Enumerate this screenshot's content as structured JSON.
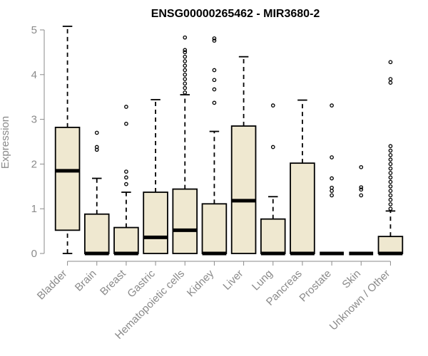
{
  "chart_data": {
    "type": "box",
    "title": "ENSG00000265462 - MIR3680-2",
    "ylabel": "Expression",
    "ylim": [
      0,
      5
    ],
    "y_ticks": [
      0,
      1,
      2,
      3,
      4,
      5
    ],
    "grid": false,
    "colors": {
      "box_fill": "#efe8d0",
      "box_stroke": "#000000",
      "median": "#000000",
      "axis": "#8a8a8a"
    },
    "categories": [
      "Bladder",
      "Brain",
      "Breast",
      "Gastric",
      "Hematopoietic cells",
      "Kidney",
      "Liver",
      "Lung",
      "Pancreas",
      "Prostate",
      "Skin",
      "Unknown / Other"
    ],
    "boxes": [
      {
        "q1": 0.52,
        "median": 1.85,
        "q3": 2.82,
        "whisker_low": 0.0,
        "whisker_high": 5.08,
        "outliers": []
      },
      {
        "q1": 0.0,
        "median": 0.0,
        "q3": 0.88,
        "whisker_low": 0.0,
        "whisker_high": 1.68,
        "outliers": [
          2.32,
          2.38,
          2.7
        ]
      },
      {
        "q1": 0.0,
        "median": 0.0,
        "q3": 0.58,
        "whisker_low": 0.0,
        "whisker_high": 1.37,
        "outliers": [
          1.55,
          1.7,
          1.83,
          2.9,
          3.28
        ]
      },
      {
        "q1": 0.0,
        "median": 0.36,
        "q3": 1.37,
        "whisker_low": 0.0,
        "whisker_high": 3.44,
        "outliers": []
      },
      {
        "q1": 0.0,
        "median": 0.52,
        "q3": 1.44,
        "whisker_low": 0.0,
        "whisker_high": 3.55,
        "outliers": [
          3.6,
          3.7,
          3.8,
          3.9,
          4.0,
          4.1,
          4.2,
          4.3,
          4.4,
          4.5,
          4.55,
          4.83
        ]
      },
      {
        "q1": 0.0,
        "median": 0.0,
        "q3": 1.11,
        "whisker_low": 0.0,
        "whisker_high": 2.73,
        "outliers": [
          3.37,
          3.67,
          3.88,
          4.1,
          4.76,
          4.81
        ]
      },
      {
        "q1": 0.0,
        "median": 1.18,
        "q3": 2.85,
        "whisker_low": 0.0,
        "whisker_high": 4.4,
        "outliers": []
      },
      {
        "q1": 0.0,
        "median": 0.0,
        "q3": 0.77,
        "whisker_low": 0.0,
        "whisker_high": 1.27,
        "outliers": [
          2.38,
          3.31
        ]
      },
      {
        "q1": 0.0,
        "median": 0.0,
        "q3": 2.02,
        "whisker_low": 0.0,
        "whisker_high": 3.43,
        "outliers": []
      },
      {
        "q1": 0.0,
        "median": 0.0,
        "q3": 0.0,
        "whisker_low": 0.0,
        "whisker_high": 0.0,
        "outliers": [
          1.3,
          1.4,
          1.47,
          1.68,
          2.15,
          3.31
        ]
      },
      {
        "q1": 0.0,
        "median": 0.0,
        "q3": 0.0,
        "whisker_low": 0.0,
        "whisker_high": 0.0,
        "outliers": [
          1.3,
          1.43,
          1.48,
          1.93
        ]
      },
      {
        "q1": 0.0,
        "median": 0.0,
        "q3": 0.38,
        "whisker_low": 0.0,
        "whisker_high": 0.95,
        "outliers": [
          1.0,
          1.1,
          1.2,
          1.3,
          1.4,
          1.5,
          1.6,
          1.7,
          1.8,
          1.9,
          2.0,
          2.1,
          2.2,
          2.3,
          2.4,
          3.82,
          3.9,
          4.28
        ]
      }
    ]
  }
}
